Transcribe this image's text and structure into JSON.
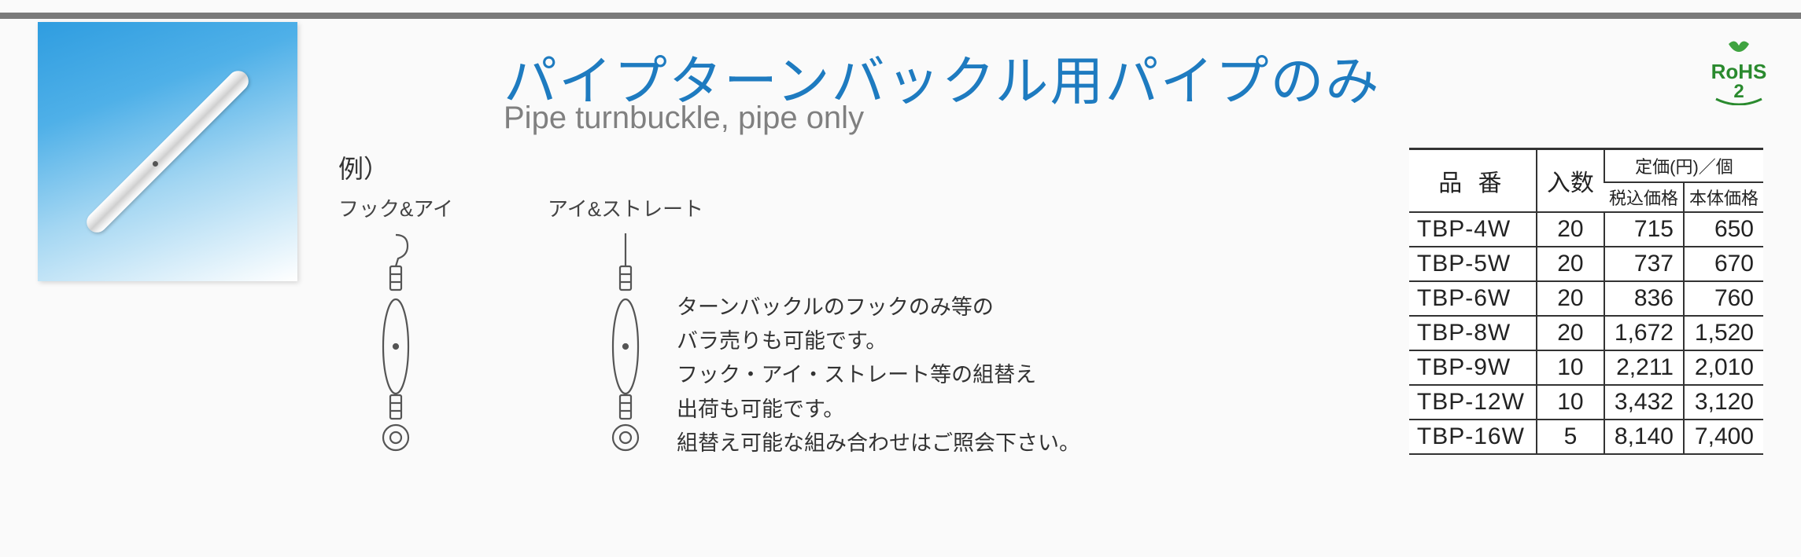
{
  "title_jp": "パイプターンバックル用パイプのみ",
  "title_en": "Pipe turnbuckle, pipe only",
  "rohs_label": "RoHS2",
  "example": {
    "heading": "例）",
    "diagrams": [
      {
        "label": "フック&アイ",
        "type": "hook-eye"
      },
      {
        "label": "アイ&ストレート",
        "type": "eye-straight"
      }
    ]
  },
  "description_lines": [
    "ターンバックルのフックのみ等の",
    "バラ売りも可能です。",
    "フック・アイ・ストレート等の組替え",
    "出荷も可能です。",
    "組替え可能な組み合わせはご照会下さい。"
  ],
  "table": {
    "headers": {
      "code": "品 番",
      "qty": "入数",
      "price_group": "定価(円)／個",
      "price_tax": "税込価格",
      "price_net": "本体価格"
    },
    "rows": [
      {
        "code": "TBP-4W",
        "qty": "20",
        "tax": "715",
        "net": "650"
      },
      {
        "code": "TBP-5W",
        "qty": "20",
        "tax": "737",
        "net": "670"
      },
      {
        "code": "TBP-6W",
        "qty": "20",
        "tax": "836",
        "net": "760"
      },
      {
        "code": "TBP-8W",
        "qty": "20",
        "tax": "1,672",
        "net": "1,520"
      },
      {
        "code": "TBP-9W",
        "qty": "10",
        "tax": "2,211",
        "net": "2,010"
      },
      {
        "code": "TBP-12W",
        "qty": "10",
        "tax": "3,432",
        "net": "3,120"
      },
      {
        "code": "TBP-16W",
        "qty": "5",
        "tax": "8,140",
        "net": "7,400"
      }
    ]
  },
  "style": {
    "accent_color": "#1e7bc0",
    "rule_color": "#7a7a7a",
    "table_border": "#333333",
    "bg": "#fafafa",
    "photo_gradient": [
      "#2f9de0",
      "#ffffff"
    ],
    "font_title_jp": 68,
    "font_title_en": 40,
    "font_table": 30,
    "font_body": 27
  }
}
